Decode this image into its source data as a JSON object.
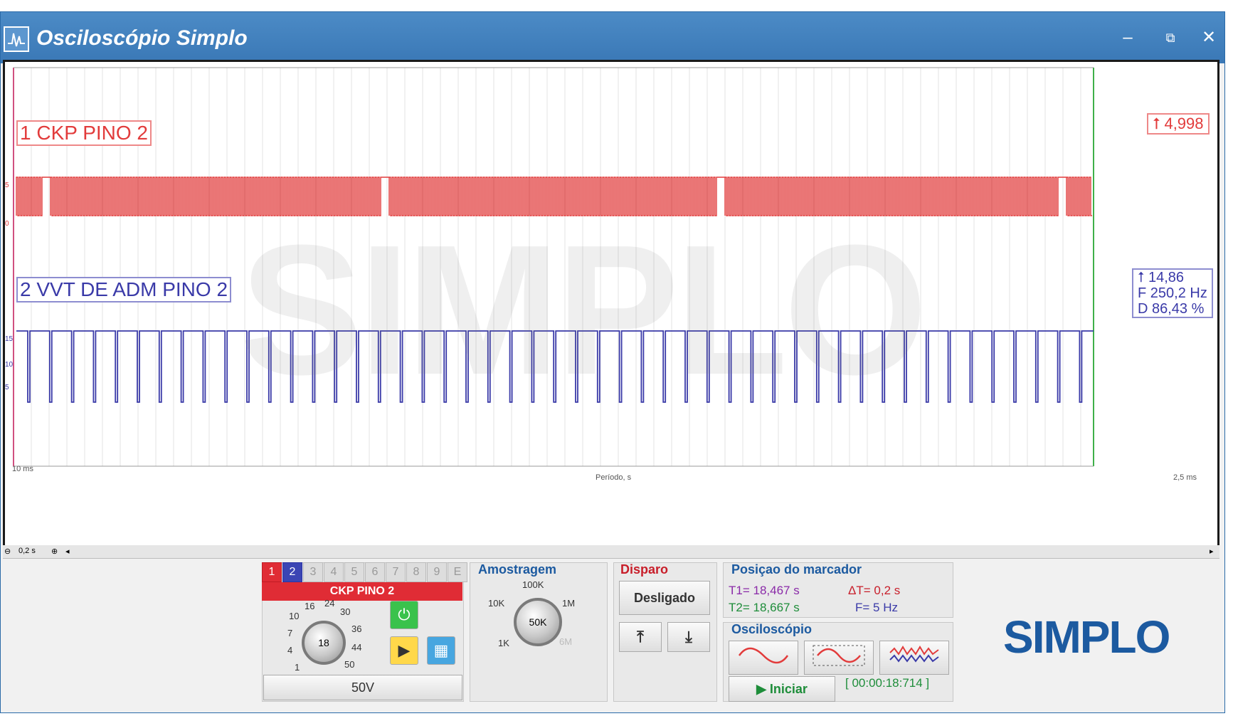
{
  "window": {
    "title": "Osciloscópio Simplo",
    "minimize_icon": "–",
    "restore_icon": "⧉",
    "close_icon": "✕"
  },
  "scope": {
    "channel1_label": "1 CKP PINO 2",
    "channel2_label": "2 VVT DE ADM PINO 2",
    "channel1_marker_value": "⭡ 4,998",
    "channel2_measure": {
      "value": "⭡ 14,86",
      "frequency": "F 250,2 Hz",
      "duty": "D 86,43 %"
    },
    "watermark": "SIMPLO",
    "axis_left": "10 ms",
    "axis_mid": "Período, s",
    "axis_right": "2,5 ms",
    "ch1_scale": [
      "5",
      "0"
    ],
    "ch2_scale": [
      "15",
      "10",
      "5"
    ],
    "scroll_zoom": "0,2 s",
    "colors": {
      "ch1": "#e23b3b",
      "ch2": "#3a3aa8"
    }
  },
  "channel_panel": {
    "tabs": [
      "1",
      "2",
      "3",
      "4",
      "5",
      "6",
      "7",
      "8",
      "9",
      "E"
    ],
    "channel_name": "CKP PINO 2",
    "knob_value": "18",
    "knob_ticks": [
      "1",
      "4",
      "7",
      "10",
      "16",
      "24",
      "30",
      "36",
      "44",
      "50"
    ],
    "range_value": "50V",
    "power_icon": "⏻",
    "play_icon": "▶",
    "calc_icon": "▦"
  },
  "sampling": {
    "title": "Amostragem",
    "knob_value": "50K",
    "ticks": [
      "1K",
      "10K",
      "100K",
      "1M",
      "6M"
    ]
  },
  "trigger": {
    "title": "Disparo",
    "mode": "Desligado",
    "rising_icon": "⤒",
    "falling_icon": "⤓"
  },
  "marker": {
    "title": "Posiçao do marcador",
    "t1": "T1= 18,467 s",
    "t2": "T2= 18,667 s",
    "dt": "ΔT= 0,2 s",
    "freq": "F= 5 Hz"
  },
  "oscilloscope": {
    "title": "Osciloscópio",
    "start_label": "Iniciar",
    "timer": "[ 00:00:18:714 ]"
  },
  "brand": {
    "logo": "SIMPLO"
  }
}
